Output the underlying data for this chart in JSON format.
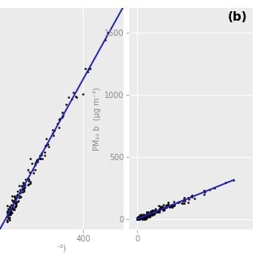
{
  "background_color": "#ebebeb",
  "grid_color": "#ffffff",
  "panel_b_label": "(b)",
  "ylabel_b": "PM₁₀ b  (μg m⁻³)",
  "yticks_b": [
    0,
    500,
    1000,
    1500
  ],
  "xticks_b": [
    0
  ],
  "ylim_b": [
    -80,
    1700
  ],
  "xlim_b": [
    -25,
    370
  ],
  "scatter_color": "black",
  "line_color": "#2222bb",
  "dot_size": 3.5,
  "left_xlim": [
    150,
    520
  ],
  "left_ylim": [
    150,
    520
  ],
  "left_xticks": [
    400
  ],
  "xlabel_left_label": "⁻³)",
  "tick_color": "#888888",
  "tick_labelsize": 7,
  "label_fontsize": 7,
  "panel_label_fontsize": 11
}
